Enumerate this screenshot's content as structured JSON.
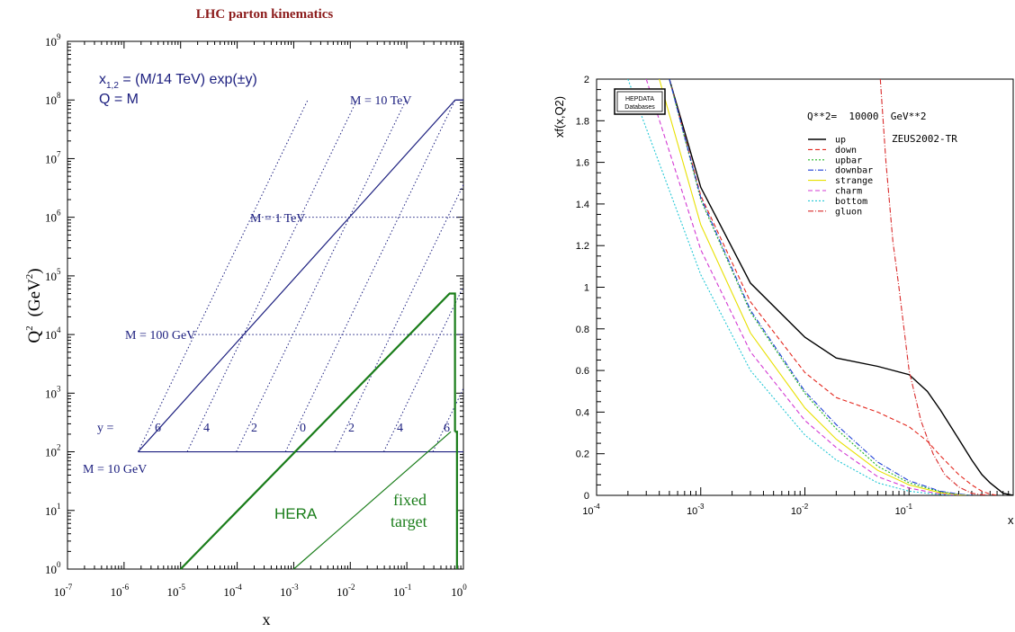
{
  "chart_data": [
    {
      "type": "line",
      "title": "LHC parton kinematics",
      "xlabel": "x",
      "ylabel": "Q",
      "ylabel_sup": "2",
      "ylabel_unit_pre": "(GeV",
      "ylabel_unit_sup": "2",
      "ylabel_unit_post": ")",
      "x_log": true,
      "y_log": true,
      "xlim_exp": [
        -7,
        0
      ],
      "ylim_exp": [
        0,
        9
      ],
      "tick_base": "10",
      "x_tick_exps": [
        "-7",
        "-6",
        "-5",
        "-4",
        "-3",
        "-2",
        "-1",
        "0"
      ],
      "y_tick_exps": [
        "0",
        "1",
        "2",
        "3",
        "4",
        "5",
        "6",
        "7",
        "8",
        "9"
      ],
      "formula_line1": {
        "pre": "x",
        "sub": "1,2",
        "post": " = (M/14 TeV) exp(±y)"
      },
      "formula_line2": "Q = M",
      "mass_labels": [
        "M = 10 TeV",
        "M = 1 TeV",
        "M = 100 GeV",
        "M = 10 GeV"
      ],
      "y_label_prefix": "y =",
      "y_values": [
        "6",
        "4",
        "2",
        "0",
        "2",
        "4",
        "6"
      ],
      "region_labels": {
        "hera": "HERA",
        "fixed_line1": "fixed",
        "fixed_line2": "target"
      },
      "kinematic_region": {
        "x": [
          5.7e-07,
          0.71,
          1.0,
          1.0,
          1.0
        ],
        "q2": [
          100,
          100000000.0,
          100000000.0
        ]
      },
      "mass_lines_q2": [
        100,
        10000,
        1000000,
        100000000.0
      ],
      "rapidity_lines": [
        -6,
        -4,
        -2,
        0,
        2,
        4,
        6
      ],
      "hera_boundary": {
        "x": [
          1e-05,
          0.57,
          0.57
        ],
        "q2": [
          1,
          50000,
          50000
        ]
      },
      "fixed_target_boundary": {
        "x": [
          0.001,
          0.6,
          0.6,
          0.77,
          0.77
        ],
        "q2": [
          1,
          220,
          220,
          220,
          1
        ]
      },
      "colors": {
        "kinematics": "#1c1f7f",
        "hera": "#1a7d1a",
        "title": "#8b1a1a"
      }
    },
    {
      "type": "line",
      "ylabel": "xf(x,Q2)",
      "xlabel": "x",
      "x_log": true,
      "xlim": [
        0.0001,
        1
      ],
      "ylim": [
        0,
        2
      ],
      "x_tick_exps": [
        "-4",
        "-3",
        "-2",
        "-1"
      ],
      "y_ticks": [
        "0",
        "0.2",
        "0.4",
        "0.6",
        "0.8",
        "1",
        "1.2",
        "1.4",
        "1.6",
        "1.8",
        "2"
      ],
      "badge_line1": "HEPDATA",
      "badge_line2": "Databases",
      "scale_text": "Q**2=  10000  GeV**2",
      "pdf_set": "ZEUS2002-TR",
      "legend": [
        "up",
        "down",
        "upbar",
        "downbar",
        "strange",
        "charm",
        "bottom",
        "gluon"
      ],
      "series": [
        {
          "name": "up",
          "color": "#000000",
          "dash": "",
          "x": [
            0.0005,
            0.001,
            0.003,
            0.01,
            0.02,
            0.05,
            0.1,
            0.15,
            0.2,
            0.3,
            0.4,
            0.5,
            0.6,
            0.8,
            1.0
          ],
          "y": [
            2.0,
            1.48,
            1.02,
            0.76,
            0.66,
            0.62,
            0.58,
            0.5,
            0.41,
            0.27,
            0.17,
            0.1,
            0.06,
            0.01,
            0.0
          ]
        },
        {
          "name": "down",
          "color": "#e3261c",
          "dash": "5 3",
          "x": [
            0.0005,
            0.001,
            0.003,
            0.01,
            0.02,
            0.05,
            0.1,
            0.15,
            0.2,
            0.3,
            0.4,
            0.5,
            0.6,
            0.7
          ],
          "y": [
            2.0,
            1.44,
            0.93,
            0.59,
            0.47,
            0.4,
            0.33,
            0.26,
            0.19,
            0.1,
            0.05,
            0.02,
            0.006,
            0.0
          ]
        },
        {
          "name": "upbar",
          "color": "#22b522",
          "dash": "2 2",
          "x": [
            0.0005,
            0.001,
            0.003,
            0.01,
            0.02,
            0.05,
            0.1,
            0.2,
            0.3,
            0.4
          ],
          "y": [
            2.0,
            1.42,
            0.88,
            0.49,
            0.32,
            0.14,
            0.06,
            0.017,
            0.005,
            0.0
          ]
        },
        {
          "name": "downbar",
          "color": "#1e3fd6",
          "dash": "6 2 1 2",
          "x": [
            0.0005,
            0.001,
            0.003,
            0.01,
            0.02,
            0.05,
            0.1,
            0.2,
            0.3,
            0.4
          ],
          "y": [
            2.0,
            1.43,
            0.89,
            0.5,
            0.34,
            0.16,
            0.07,
            0.02,
            0.006,
            0.0
          ]
        },
        {
          "name": "strange",
          "color": "#e8e000",
          "dash": "",
          "x": [
            0.0004,
            0.001,
            0.003,
            0.01,
            0.02,
            0.05,
            0.1,
            0.2,
            0.3,
            0.35
          ],
          "y": [
            2.0,
            1.3,
            0.78,
            0.42,
            0.27,
            0.12,
            0.05,
            0.012,
            0.002,
            0.0
          ]
        },
        {
          "name": "charm",
          "color": "#d33ad3",
          "dash": "5 3",
          "x": [
            0.0003,
            0.001,
            0.003,
            0.01,
            0.02,
            0.05,
            0.1,
            0.2,
            0.3
          ],
          "y": [
            2.0,
            1.18,
            0.69,
            0.36,
            0.23,
            0.09,
            0.035,
            0.006,
            0.0
          ]
        },
        {
          "name": "bottom",
          "color": "#25c8d6",
          "dash": "2 2",
          "x": [
            0.0002,
            0.001,
            0.003,
            0.01,
            0.02,
            0.05,
            0.1,
            0.2,
            0.27
          ],
          "y": [
            2.0,
            1.06,
            0.6,
            0.29,
            0.17,
            0.06,
            0.02,
            0.003,
            0.0
          ]
        },
        {
          "name": "gluon",
          "color": "#d92a2a",
          "dash": "6 2 1 2",
          "x": [
            0.053,
            0.06,
            0.07,
            0.08,
            0.1,
            0.13,
            0.17,
            0.22,
            0.3,
            0.4,
            0.5,
            0.6
          ],
          "y": [
            2.0,
            1.6,
            1.22,
            1.0,
            0.6,
            0.36,
            0.2,
            0.1,
            0.04,
            0.01,
            0.003,
            0.0
          ]
        }
      ],
      "colors": {
        "axis": "#000000"
      }
    }
  ]
}
